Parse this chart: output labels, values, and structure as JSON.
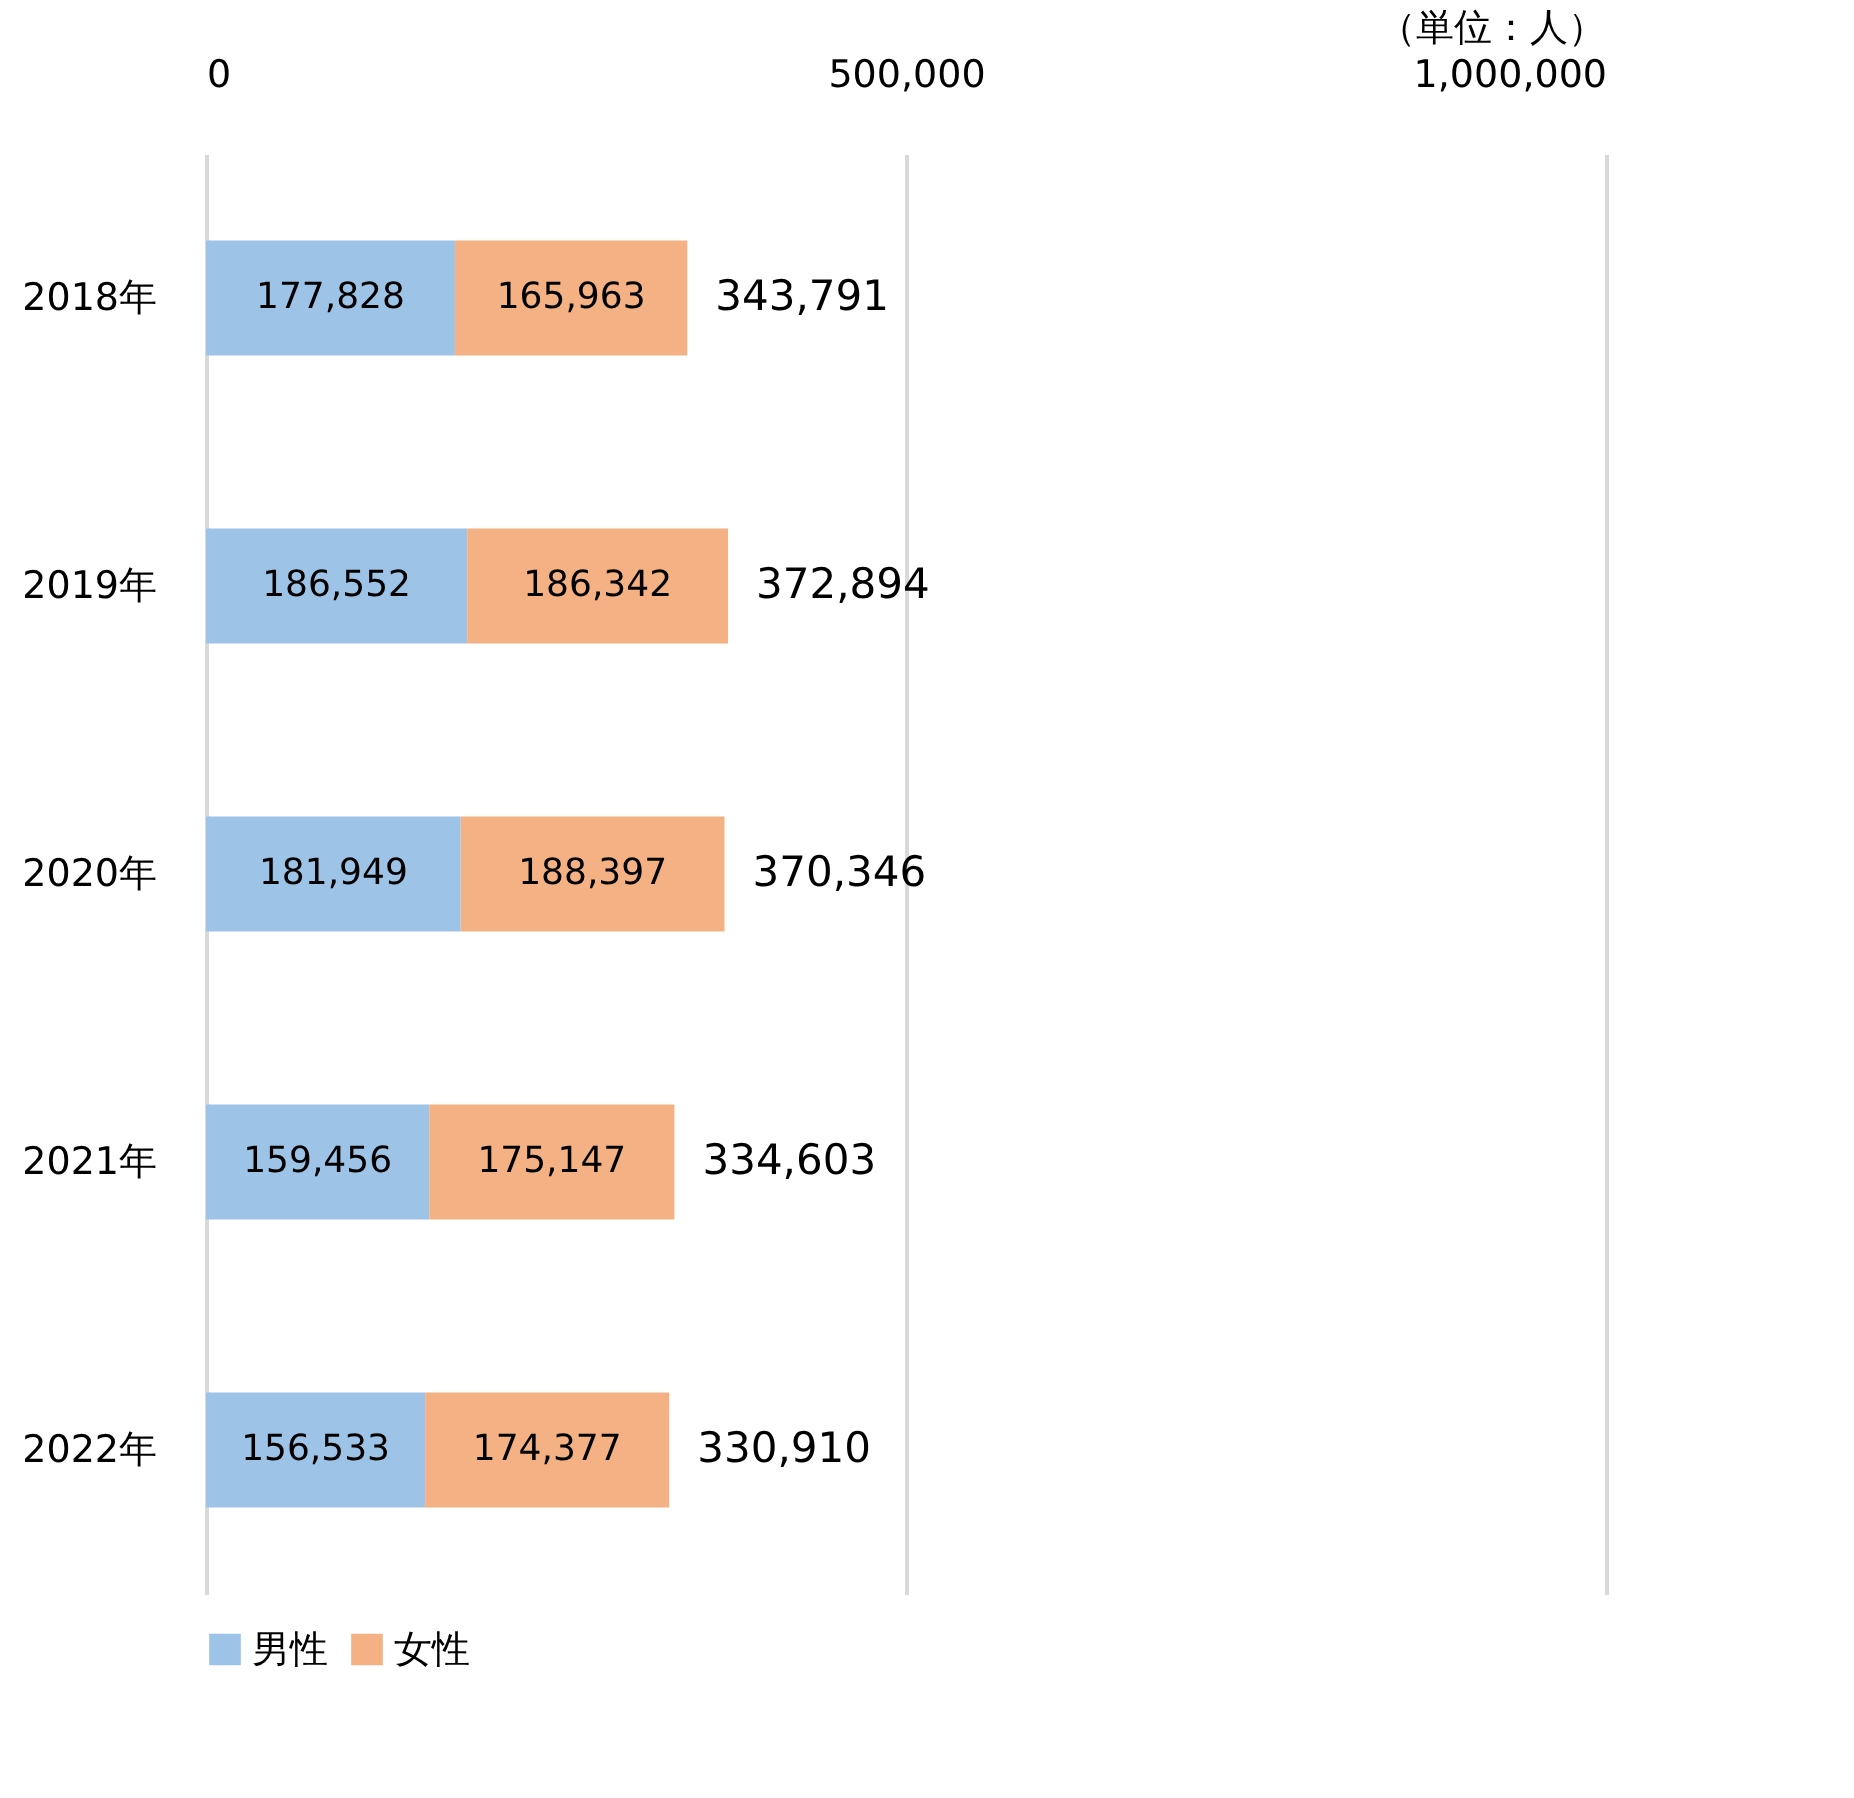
{
  "chart_data": {
    "type": "bar",
    "orientation": "horizontal",
    "stacked": true,
    "categories": [
      "2018年",
      "2019年",
      "2020年",
      "2021年",
      "2022年"
    ],
    "series": [
      {
        "name": "男性",
        "color": "#9dc3e6",
        "values": [
          177828,
          186552,
          181949,
          159456,
          156533
        ],
        "value_labels": [
          "177,828",
          "186,552",
          "181,949",
          "159,456",
          "156,533"
        ]
      },
      {
        "name": "女性",
        "color": "#f4b183",
        "values": [
          165963,
          186342,
          188397,
          175147,
          174377
        ],
        "value_labels": [
          "165,963",
          "186,342",
          "188,397",
          "175,147",
          "174,377"
        ]
      }
    ],
    "totals": [
      "343,791",
      "372,894",
      "370,346",
      "334,603",
      "330,910"
    ],
    "xlim": [
      0,
      1000000
    ],
    "xticks": [
      0,
      {
        "value": 500000,
        "label": "500,000"
      },
      {
        "value": 1000000,
        "label": "1,000,000"
      }
    ],
    "grid": "x",
    "legend": "bottom",
    "annotations": [
      "（単位：人）"
    ]
  }
}
